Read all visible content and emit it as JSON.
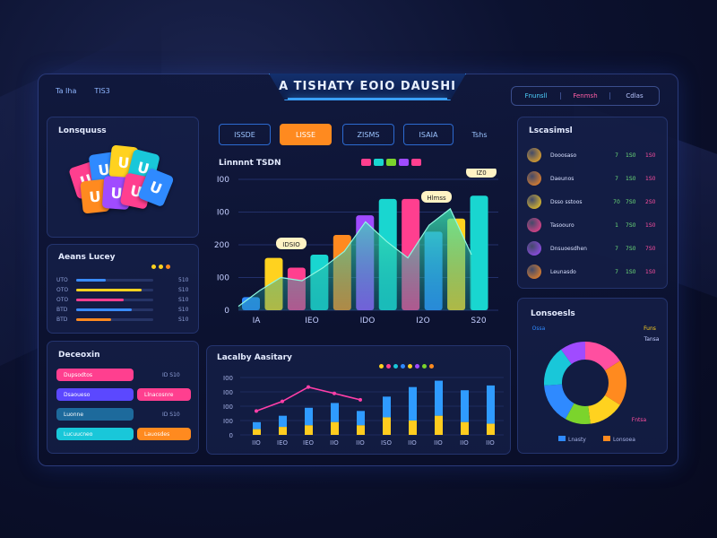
{
  "window": {
    "title": "A TISHATY EOIO DAUSHI",
    "top_left": [
      "Ta Iha",
      "TIS3"
    ],
    "top_right": [
      "Fnunsll",
      "Fenmsh",
      "Cdlas"
    ]
  },
  "games_panel": {
    "title": "Lonsquuss"
  },
  "progress_panel": {
    "title": "Aeans Lucey",
    "rows": [
      {
        "label": "UTO",
        "value": "510",
        "fill": 0.38,
        "color": "#3a8cff"
      },
      {
        "label": "OTO",
        "value": "S10",
        "fill": 0.85,
        "color": "#ffd21f"
      },
      {
        "label": "OTO",
        "value": "S10",
        "fill": 0.62,
        "color": "#ff3f8f"
      },
      {
        "label": "BTD",
        "value": "S10",
        "fill": 0.72,
        "color": "#3a8cff"
      },
      {
        "label": "BTD",
        "value": "S10",
        "fill": 0.45,
        "color": "#ff8a1f"
      }
    ]
  },
  "actions_panel": {
    "title": "Deceoxin",
    "rows": [
      {
        "label": "Dupsodtos",
        "color": "#ff3f8f",
        "side": "ID S10",
        "side_color": ""
      },
      {
        "label": "Dsaoueso",
        "color": "#5b48ff",
        "side": "Llnacosnre",
        "side_color": "#ff3f8f"
      },
      {
        "label": "Luonne",
        "color": "#1d6a9c",
        "side": "ID S10",
        "side_color": ""
      },
      {
        "label": "Lucuucneo",
        "color": "#19c7d9",
        "side": "Lauosdes",
        "side_color": "#ff8a1f"
      }
    ]
  },
  "tabs": [
    "ISSDE",
    "LISSE",
    "ZISMS",
    "ISAIA",
    "Tshs"
  ],
  "main_chart": {
    "title": "Linnnnt TSDN",
    "legend_colors": [
      "#ff3f8f",
      "#19d6d0",
      "#7bd42c",
      "#a04bff",
      "#ff3f8f"
    ]
  },
  "chart_data": [
    {
      "type": "bar",
      "title": "Linnnnt TSDN",
      "ylim": [
        0,
        400
      ],
      "yticks": [
        "0",
        "I00",
        "200",
        "I00",
        "I00"
      ],
      "xticks": [
        "IA",
        "IEO",
        "IDO",
        "I2O",
        "S20"
      ],
      "bars": [
        {
          "x": 0,
          "value": 40,
          "color": "#2f8aff"
        },
        {
          "x": 1,
          "value": 160,
          "color": "#ffd21f"
        },
        {
          "x": 2,
          "value": 130,
          "color": "#ff3f8f"
        },
        {
          "x": 3,
          "value": 170,
          "color": "#19d6d0"
        },
        {
          "x": 4,
          "value": 230,
          "color": "#ff8a1f"
        },
        {
          "x": 5,
          "value": 290,
          "color": "#a04bff"
        },
        {
          "x": 6,
          "value": 340,
          "color": "#19d6d0"
        },
        {
          "x": 7,
          "value": 340,
          "color": "#ff3f8f"
        },
        {
          "x": 8,
          "value": 240,
          "color": "#2f8aff"
        },
        {
          "x": 9,
          "value": 280,
          "color": "#ffd21f"
        },
        {
          "x": 10,
          "value": 350,
          "color": "#19d6d0"
        }
      ],
      "area": [
        12,
        60,
        100,
        90,
        130,
        180,
        270,
        210,
        160,
        260,
        310,
        170
      ],
      "annotations": [
        "IDSIO",
        "Hlmss",
        "IZ0"
      ]
    },
    {
      "type": "bar",
      "title": "Lacalby Aasitary",
      "yticks": [
        "0",
        "I00",
        "I00",
        "I00",
        "I00"
      ],
      "xticks": [
        "IIO",
        "IEO",
        "IEO",
        "IIO",
        "IIO",
        "ISO",
        "IIO",
        "IIO",
        "IIO",
        "IIO"
      ],
      "series": [
        {
          "name": "",
          "color": "#2f9bff",
          "values": [
            40,
            60,
            85,
            100,
            75,
            120,
            150,
            170,
            140,
            155
          ]
        },
        {
          "name": "",
          "color": "#ffcc1f",
          "values": [
            18,
            25,
            30,
            40,
            30,
            55,
            45,
            60,
            40,
            35
          ]
        }
      ],
      "line": {
        "color": "#ff3fa8",
        "values": [
          75,
          105,
          150,
          130,
          110
        ]
      }
    },
    {
      "type": "pie",
      "title": "Lonsoesls",
      "slices": [
        {
          "value": 16,
          "color": "#ff4fa0"
        },
        {
          "value": 18,
          "color": "#ff8a1f"
        },
        {
          "value": 14,
          "color": "#ffd21f"
        },
        {
          "value": 10,
          "color": "#7bd42c"
        },
        {
          "value": 16,
          "color": "#2f8aff"
        },
        {
          "value": 16,
          "color": "#19c7d9"
        },
        {
          "value": 10,
          "color": "#a04bff"
        }
      ],
      "labels": [
        "Ossa",
        "Funs",
        "Tansa",
        "Fntsa"
      ],
      "legend": [
        "Lnasty",
        "Lonsoea"
      ]
    }
  ],
  "right_list": {
    "title": "Lscasimsl",
    "rows": [
      {
        "label": "Dooosaso",
        "num": "7",
        "v1": "1S0",
        "v2": "1S0",
        "color": "#ffb31f"
      },
      {
        "label": "Daeunos",
        "num": "7",
        "v1": "1S0",
        "v2": "1S0",
        "color": "#ff8a1f"
      },
      {
        "label": "Dsso sstoos",
        "num": "70",
        "v1": "7S0",
        "v2": "2S0",
        "color": "#ffd21f"
      },
      {
        "label": "Tasoouro",
        "num": "1",
        "v1": "7S0",
        "v2": "1S0",
        "color": "#ff3f8f"
      },
      {
        "label": "Dnsuoesdhen",
        "num": "7",
        "v1": "7S0",
        "v2": "7S0",
        "color": "#a04bff"
      },
      {
        "label": "Leunasdo",
        "num": "7",
        "v1": "1S0",
        "v2": "1S0",
        "color": "#ff8a1f"
      }
    ]
  }
}
